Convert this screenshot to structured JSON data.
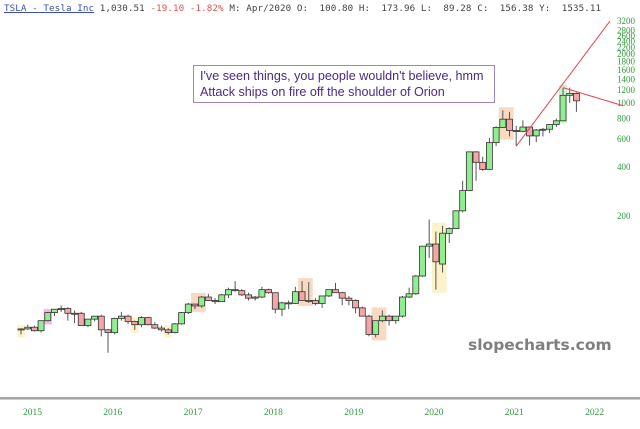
{
  "header": {
    "symbol": "TSLA - Tesla Inc",
    "last": "1,030.51",
    "change": "-19.10",
    "change_pct": "-1.82%",
    "period_label": "M: Apr/2020",
    "open_label": "O:",
    "open": "100.80",
    "high_label": "H:",
    "high": "173.96",
    "low_label": "L:",
    "low": "89.28",
    "close_label": "C:",
    "close": "156.38",
    "y_label": "Y:",
    "y": "1535.11"
  },
  "annotation": {
    "line1": "I've seen things, you people wouldn't believe, hmm",
    "line2": "Attack ships on fire off the shoulder of Orion"
  },
  "watermark": "slopecharts.com",
  "colors": {
    "up_fill": "#90ee90",
    "down_fill": "#f4a6a6",
    "wick": "#333333",
    "axis_text": "#2f9a3a",
    "trendline": "#e8454f",
    "highlight_yellow": "#fdf0c0",
    "highlight_orange": "#f9d2b8",
    "highlight_pink": "#f5a8e8",
    "highlight_green": "#c8f0c8"
  },
  "chart_data": {
    "type": "candlestick",
    "title": "TSLA - Tesla Inc (monthly)",
    "yscale": "log",
    "ylim": [
      30,
      3200
    ],
    "y_ticks": [
      200,
      400,
      600,
      800,
      1000,
      1200,
      1400,
      1600,
      1800,
      2000,
      2200,
      2400,
      2600,
      2800,
      3200
    ],
    "x_ticks": [
      "2015",
      "2016",
      "2017",
      "2018",
      "2019",
      "2020",
      "2021",
      "2022"
    ],
    "grid": false,
    "start": "2015-01",
    "candles": [
      [
        40.0,
        40.5,
        37.0,
        40.0
      ],
      [
        40.0,
        42.5,
        39.5,
        41.0
      ],
      [
        41.0,
        42.0,
        38.5,
        39.0
      ],
      [
        39.0,
        45.0,
        38.0,
        45.0
      ],
      [
        45.0,
        51.0,
        44.5,
        50.5
      ],
      [
        50.5,
        53.0,
        48.0,
        53.0
      ],
      [
        53.0,
        56.0,
        51.0,
        53.5
      ],
      [
        53.5,
        54.5,
        45.0,
        50.0
      ],
      [
        50.0,
        52.0,
        43.5,
        50.0
      ],
      [
        50.0,
        51.0,
        42.0,
        42.0
      ],
      [
        42.0,
        46.0,
        41.0,
        46.0
      ],
      [
        46.0,
        48.0,
        44.5,
        48.0
      ],
      [
        48.0,
        49.0,
        36.0,
        39.5
      ],
      [
        39.5,
        40.0,
        28.5,
        38.0
      ],
      [
        38.0,
        47.0,
        37.0,
        46.5
      ],
      [
        46.5,
        51.0,
        45.0,
        48.0
      ],
      [
        48.0,
        49.0,
        43.0,
        44.5
      ],
      [
        44.5,
        45.0,
        39.5,
        42.5
      ],
      [
        42.5,
        48.0,
        41.0,
        47.0
      ],
      [
        47.0,
        47.5,
        42.0,
        42.5
      ],
      [
        42.5,
        44.0,
        40.0,
        40.5
      ],
      [
        40.5,
        42.0,
        38.5,
        39.5
      ],
      [
        39.5,
        40.5,
        37.0,
        38.0
      ],
      [
        38.0,
        43.5,
        37.5,
        43.0
      ],
      [
        43.0,
        51.0,
        42.5,
        50.5
      ],
      [
        50.5,
        58.0,
        49.5,
        57.0
      ],
      [
        57.0,
        56.0,
        53.0,
        55.5
      ],
      [
        55.5,
        64.0,
        54.0,
        63.0
      ],
      [
        63.0,
        66.0,
        59.5,
        60.0
      ],
      [
        60.0,
        62.0,
        57.0,
        59.0
      ],
      [
        59.0,
        66.0,
        61.0,
        65.0
      ],
      [
        65.0,
        72.0,
        62.0,
        70.0
      ],
      [
        70.0,
        79.0,
        68.0,
        69.0
      ],
      [
        69.0,
        70.5,
        64.0,
        65.0
      ],
      [
        65.0,
        67.0,
        60.0,
        62.0
      ],
      [
        62.0,
        64.0,
        60.0,
        63.0
      ],
      [
        63.0,
        73.0,
        62.0,
        70.0
      ],
      [
        70.0,
        71.0,
        66.0,
        67.0
      ],
      [
        67.0,
        65.0,
        50.0,
        53.0
      ],
      [
        53.0,
        59.0,
        48.0,
        58.0
      ],
      [
        58.0,
        60.0,
        53.0,
        57.5
      ],
      [
        57.5,
        73.0,
        57.0,
        68.0
      ],
      [
        68.0,
        79.0,
        64.0,
        60.0
      ],
      [
        60.0,
        78.0,
        58.0,
        60.0
      ],
      [
        60.0,
        62.0,
        56.0,
        57.5
      ],
      [
        57.5,
        64.0,
        54.0,
        64.0
      ],
      [
        64.0,
        70.0,
        63.0,
        70.0
      ],
      [
        70.0,
        77.0,
        67.0,
        67.0
      ],
      [
        67.0,
        68.0,
        56.0,
        62.0
      ],
      [
        62.0,
        64.0,
        56.0,
        60.0
      ],
      [
        60.0,
        61.0,
        50.0,
        54.0
      ],
      [
        54.0,
        55.0,
        49.0,
        48.0
      ],
      [
        48.0,
        49.0,
        36.0,
        37.0
      ],
      [
        37.0,
        45.0,
        35.5,
        45.0
      ],
      [
        45.0,
        52.0,
        44.0,
        48.0
      ],
      [
        48.0,
        49.0,
        42.0,
        45.0
      ],
      [
        45.0,
        48.0,
        43.0,
        48.0
      ],
      [
        48.0,
        64.0,
        47.0,
        63.0
      ],
      [
        63.0,
        72.0,
        62.0,
        66.0
      ],
      [
        66.0,
        86.0,
        65.0,
        85.0
      ],
      [
        85.0,
        130.0,
        84.0,
        130.0
      ],
      [
        130.0,
        190.0,
        110.0,
        134.0
      ],
      [
        134.0,
        160.0,
        70.0,
        104.0
      ],
      [
        100.8,
        173.96,
        89.28,
        156.38
      ],
      [
        156.0,
        170.0,
        136.0,
        167.0
      ],
      [
        167.0,
        217.0,
        168.0,
        215.0
      ],
      [
        215.0,
        330.0,
        210.0,
        287.0
      ],
      [
        287.0,
        500.0,
        285.0,
        498.0
      ],
      [
        498.0,
        502.0,
        330.0,
        429.0
      ],
      [
        429.0,
        465.0,
        380.0,
        388.0
      ],
      [
        388.0,
        608.0,
        390.0,
        568.0
      ],
      [
        568.0,
        718.0,
        540.0,
        705.0
      ],
      [
        705.0,
        900.0,
        700.0,
        793.0
      ],
      [
        793.0,
        880.0,
        620.0,
        675.0
      ],
      [
        675.0,
        721.0,
        540.0,
        667.0
      ],
      [
        667.0,
        780.0,
        660.0,
        709.0
      ],
      [
        709.0,
        714.0,
        546.0,
        625.0
      ],
      [
        625.0,
        690.0,
        572.0,
        680.0
      ],
      [
        680.0,
        700.0,
        620.0,
        687.0
      ],
      [
        687.0,
        740.0,
        650.0,
        735.0
      ],
      [
        735.0,
        800.0,
        708.0,
        775.0
      ],
      [
        775.0,
        1243.0,
        780.0,
        1114.0
      ],
      [
        1114.0,
        1243.0,
        1000.0,
        1145.0
      ],
      [
        1145.0,
        1160.0,
        880.0,
        1030.0
      ]
    ],
    "highlights": [
      {
        "from": 0,
        "to": 0,
        "color": "highlight_yellow"
      },
      {
        "from": 4,
        "to": 4,
        "color": "highlight_pink"
      },
      {
        "from": 17,
        "to": 17,
        "color": "highlight_yellow"
      },
      {
        "from": 22,
        "to": 22,
        "color": "highlight_yellow"
      },
      {
        "from": 26,
        "to": 27,
        "color": "highlight_orange"
      },
      {
        "from": 42,
        "to": 43,
        "color": "highlight_orange"
      },
      {
        "from": 53,
        "to": 54,
        "color": "highlight_orange"
      },
      {
        "from": 62,
        "to": 63,
        "color": "highlight_yellow"
      },
      {
        "from": 72,
        "to": 73,
        "color": "highlight_orange"
      },
      {
        "from": 81,
        "to": 81,
        "color": "highlight_green"
      }
    ],
    "trendlines": [
      {
        "from": [
          74,
          540
        ],
        "to": [
          88,
          3200
        ]
      },
      {
        "from": [
          81,
          1243
        ],
        "to": [
          90,
          960
        ]
      }
    ]
  }
}
